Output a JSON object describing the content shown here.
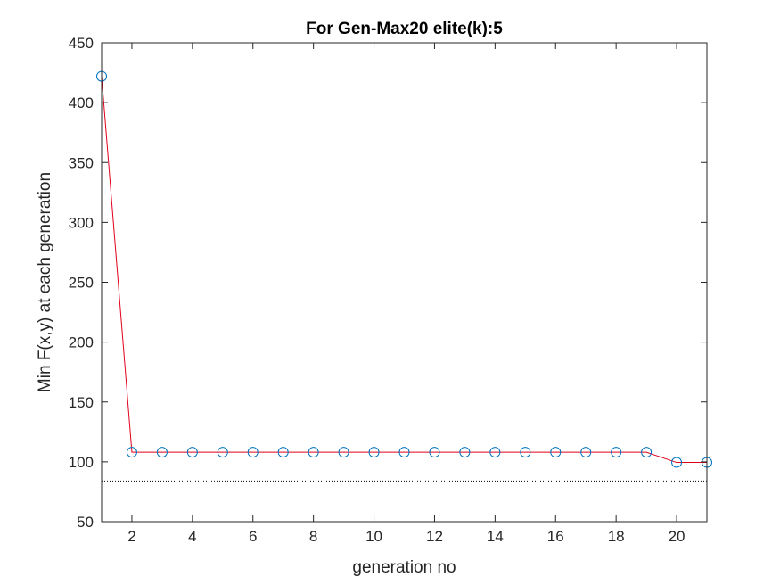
{
  "colors": {
    "line": "#e0001b",
    "marker": "#0072bd",
    "reference_line": "#000000",
    "axes": "#262626",
    "background": "#ffffff"
  },
  "chart_data": {
    "type": "line",
    "title": "For Gen-Max20 elite(k):5",
    "xlabel": "generation no",
    "ylabel": "Min F(x,y) at each generation",
    "xlim": [
      1,
      21
    ],
    "ylim": [
      50,
      450
    ],
    "xticks": [
      2,
      4,
      6,
      8,
      10,
      12,
      14,
      16,
      18,
      20
    ],
    "yticks": [
      50,
      100,
      150,
      200,
      250,
      300,
      350,
      400,
      450
    ],
    "grid": false,
    "box": true,
    "series": [
      {
        "line_style": "solid",
        "marker": "circle",
        "x": [
          1,
          2,
          3,
          4,
          5,
          6,
          7,
          8,
          9,
          10,
          11,
          12,
          13,
          14,
          15,
          16,
          17,
          18,
          19,
          20,
          21
        ],
        "y": [
          422,
          108,
          108,
          108,
          108,
          108,
          108,
          108,
          108,
          108,
          108,
          108,
          108,
          108,
          108,
          108,
          108,
          108,
          108,
          99.5,
          99.5
        ]
      }
    ],
    "reference_lines": [
      {
        "orientation": "horizontal",
        "y": 84,
        "style": "dotted"
      }
    ]
  }
}
